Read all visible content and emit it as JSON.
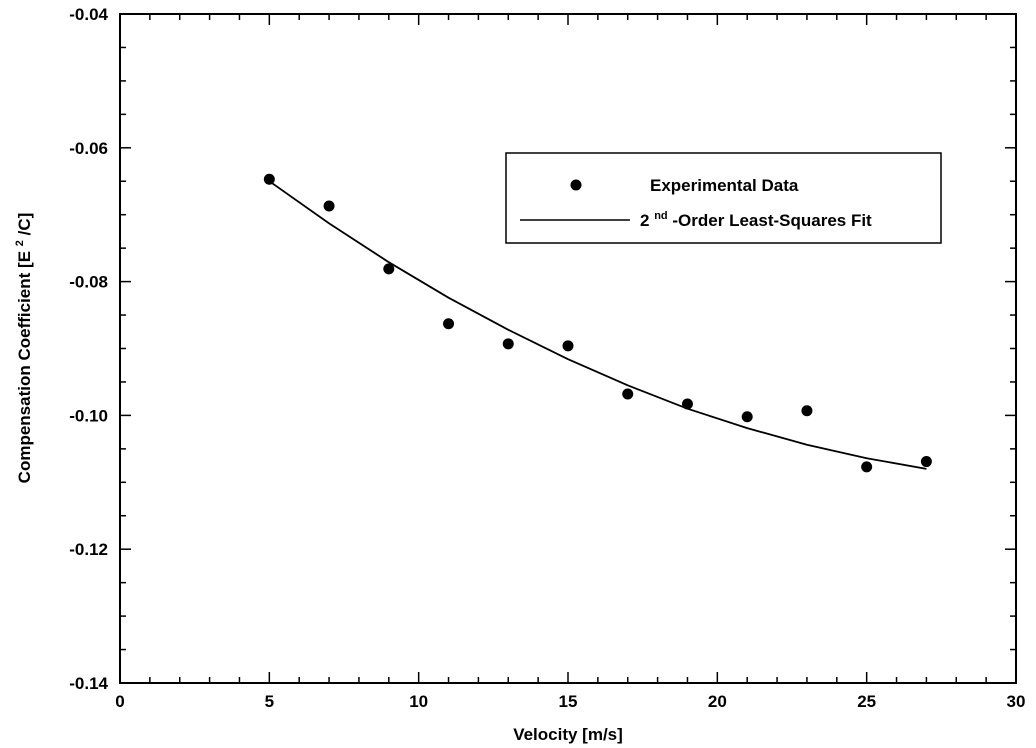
{
  "chart_data": {
    "type": "scatter",
    "title": "",
    "xlabel": "Velocity [m/s]",
    "ylabel": {
      "main": "Compensation Coefficient [E",
      "sup": "2",
      "tail": "/C]"
    },
    "xlim": [
      0,
      30
    ],
    "ylim": [
      -0.14,
      -0.04
    ],
    "x_ticks": [
      "0",
      "5",
      "10",
      "15",
      "20",
      "25",
      "30"
    ],
    "y_ticks": [
      "-0.04",
      "-0.06",
      "-0.08",
      "-0.10",
      "-0.12",
      "-0.14"
    ],
    "grid": false,
    "legend_position": "top-right",
    "series": [
      {
        "name": "Experimental Data",
        "kind": "points",
        "x": [
          5,
          7,
          9,
          11,
          13,
          15,
          17,
          19,
          21,
          23,
          25,
          27
        ],
        "y": [
          -0.0647,
          -0.0687,
          -0.0781,
          -0.0863,
          -0.0893,
          -0.0896,
          -0.0968,
          -0.0983,
          -0.1002,
          -0.0993,
          -0.1077,
          -0.1069
        ]
      },
      {
        "name_parts": {
          "prefix": "2",
          "sup": "nd",
          "rest": "-Order Least-Squares Fit"
        },
        "kind": "line",
        "x": [
          5,
          7,
          9,
          11,
          13,
          15,
          17,
          19,
          21,
          23,
          25,
          27
        ],
        "y": [
          -0.065,
          -0.0713,
          -0.0771,
          -0.0824,
          -0.0872,
          -0.0916,
          -0.0955,
          -0.099,
          -0.1019,
          -0.1044,
          -0.1064,
          -0.108
        ]
      }
    ]
  }
}
